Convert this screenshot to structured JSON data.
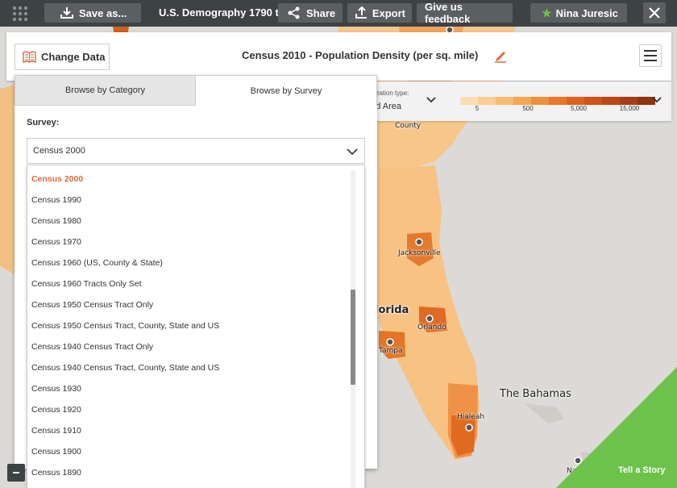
{
  "topbar": {
    "save_label": "Save as...",
    "project_title": "U.S. Demography 1790 to",
    "share_label": "Share",
    "export_label": "Export",
    "feedback_label": "Give us feedback",
    "user_name": "Nina Juresic"
  },
  "header": {
    "change_data_label": "Change Data",
    "map_title": "Census 2010 - Population Density (per sq. mile)"
  },
  "legend": {
    "viz_type_label": "ualization type:",
    "viz_type_value": "ded Area",
    "colors": [
      "#fbdcb2",
      "#f9cd94",
      "#f7bb73",
      "#f4a651",
      "#ef8f3a",
      "#e8772a",
      "#de6220",
      "#ce5319",
      "#bb4716",
      "#a63d14",
      "#8f3411"
    ],
    "ticks": [
      "5",
      "500",
      "5,000",
      "15,000"
    ]
  },
  "panel": {
    "tab_category": "Browse by Category",
    "tab_survey": "Browse by Survey",
    "survey_label": "Survey:",
    "selected_survey": "Census 2000",
    "options": [
      "Census 2000",
      "Census 1990",
      "Census 1980",
      "Census 1970",
      "Census 1960 (US, County & State)",
      "Census 1960 Tracts Only Set",
      "Census 1950 Census Tract Only",
      "Census 1950 Census Tract, County, State and US",
      "Census 1940 Census Tract Only",
      "Census 1940 Census Tract, County, State and US",
      "Census 1930",
      "Census 1920",
      "Census 1910",
      "Census 1900",
      "Census 1890"
    ]
  },
  "map": {
    "labels": {
      "county": "County",
      "jacksonville": "Jacksonville",
      "florida": "lorida",
      "orlando": "Orlando",
      "tampa": "Tampa",
      "bahamas": "The Bahamas",
      "hialeah": "Hialeah",
      "na": "Na"
    }
  },
  "story": {
    "label": "Tell a Story"
  },
  "colors": {
    "accent": "#e06a3a",
    "story_green": "#6cc24a",
    "topbar": "#3d4245"
  }
}
